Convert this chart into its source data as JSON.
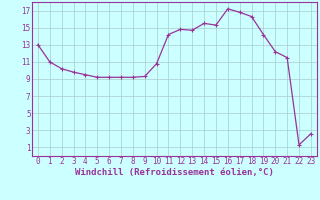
{
  "x": [
    0,
    1,
    2,
    3,
    4,
    5,
    6,
    7,
    8,
    9,
    10,
    11,
    12,
    13,
    14,
    15,
    16,
    17,
    18,
    19,
    20,
    21,
    22,
    23
  ],
  "y": [
    13,
    11,
    10.2,
    9.8,
    9.5,
    9.2,
    9.2,
    9.2,
    9.2,
    9.3,
    10.8,
    14.2,
    14.8,
    14.7,
    15.5,
    15.3,
    17.2,
    16.8,
    16.3,
    14.2,
    12.2,
    11.5,
    1.3,
    2.6
  ],
  "line_color": "#993399",
  "marker": "+",
  "marker_size": 3,
  "linewidth": 0.9,
  "bg_color": "#ccffff",
  "grid_color": "#aacccc",
  "xlabel": "Windchill (Refroidissement éolien,°C)",
  "xlabel_fontsize": 6.5,
  "xtick_labels": [
    "0",
    "1",
    "2",
    "3",
    "4",
    "5",
    "6",
    "7",
    "8",
    "9",
    "10",
    "11",
    "12",
    "13",
    "14",
    "15",
    "16",
    "17",
    "18",
    "19",
    "20",
    "21",
    "22",
    "23"
  ],
  "ytick_values": [
    1,
    3,
    5,
    7,
    9,
    11,
    13,
    15,
    17
  ],
  "ylim": [
    0,
    18
  ],
  "xlim": [
    -0.5,
    23.5
  ],
  "tick_color": "#993399",
  "tick_fontsize": 5.5,
  "spine_color": "#993399"
}
